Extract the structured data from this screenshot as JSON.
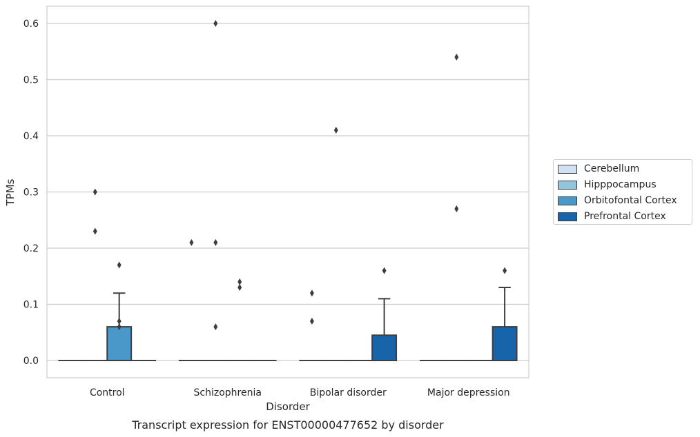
{
  "chart_data": {
    "type": "box",
    "title": "",
    "caption": "Transcript expression for ENST00000477652 by disorder",
    "xlabel": "Disorder",
    "ylabel": "TPMs",
    "ylim": [
      -0.03,
      0.63
    ],
    "yticks": [
      "0.0",
      "0.1",
      "0.2",
      "0.3",
      "0.4",
      "0.5",
      "0.6"
    ],
    "ytick_values": [
      0.0,
      0.1,
      0.2,
      0.3,
      0.4,
      0.5,
      0.6
    ],
    "grid": true,
    "legend_position": "right",
    "categories": [
      "Control",
      "Schizophrenia",
      "Bipolar disorder",
      "Major depression"
    ],
    "series": [
      {
        "name": "Cerebellum",
        "color": "#cfe1f2",
        "boxes": [
          {
            "q1": 0,
            "median": 0,
            "q3": 0,
            "whisker_low": 0,
            "whisker_high": 0,
            "outliers": []
          },
          {
            "q1": 0,
            "median": 0,
            "q3": 0,
            "whisker_low": 0,
            "whisker_high": 0,
            "outliers": [
              0.21
            ]
          },
          {
            "q1": 0,
            "median": 0,
            "q3": 0,
            "whisker_low": 0,
            "whisker_high": 0,
            "outliers": [
              0.12,
              0.07
            ]
          },
          {
            "q1": 0,
            "median": 0,
            "q3": 0,
            "whisker_low": 0,
            "whisker_high": 0,
            "outliers": []
          }
        ]
      },
      {
        "name": "Hipppocampus",
        "color": "#93c4de",
        "boxes": [
          {
            "q1": 0,
            "median": 0,
            "q3": 0,
            "whisker_low": 0,
            "whisker_high": 0,
            "outliers": [
              0.3,
              0.23
            ]
          },
          {
            "q1": 0,
            "median": 0,
            "q3": 0,
            "whisker_low": 0,
            "whisker_high": 0,
            "outliers": [
              0.6,
              0.21,
              0.06
            ]
          },
          {
            "q1": 0,
            "median": 0,
            "q3": 0,
            "whisker_low": 0,
            "whisker_high": 0,
            "outliers": [
              0.41
            ]
          },
          {
            "q1": 0,
            "median": 0,
            "q3": 0,
            "whisker_low": 0,
            "whisker_high": 0,
            "outliers": [
              0.54,
              0.27
            ]
          }
        ]
      },
      {
        "name": "Orbitofontal Cortex",
        "color": "#4a98c9",
        "boxes": [
          {
            "q1": 0,
            "median": 0,
            "q3": 0.06,
            "whisker_low": 0,
            "whisker_high": 0.12,
            "outliers": [
              0.17,
              0.07,
              0.06
            ]
          },
          {
            "q1": 0,
            "median": 0,
            "q3": 0,
            "whisker_low": 0,
            "whisker_high": 0,
            "outliers": [
              0.14,
              0.13
            ]
          },
          {
            "q1": 0,
            "median": 0,
            "q3": 0,
            "whisker_low": 0,
            "whisker_high": 0,
            "outliers": []
          },
          {
            "q1": 0,
            "median": 0,
            "q3": 0,
            "whisker_low": 0,
            "whisker_high": 0,
            "outliers": []
          }
        ]
      },
      {
        "name": "Prefrontal Cortex",
        "color": "#1764ab",
        "boxes": [
          {
            "q1": 0,
            "median": 0,
            "q3": 0,
            "whisker_low": 0,
            "whisker_high": 0,
            "outliers": []
          },
          {
            "q1": 0,
            "median": 0,
            "q3": 0,
            "whisker_low": 0,
            "whisker_high": 0,
            "outliers": []
          },
          {
            "q1": 0,
            "median": 0,
            "q3": 0.045,
            "whisker_low": 0,
            "whisker_high": 0.11,
            "outliers": [
              0.16
            ]
          },
          {
            "q1": 0,
            "median": 0,
            "q3": 0.06,
            "whisker_low": 0,
            "whisker_high": 0.13,
            "outliers": [
              0.16
            ]
          }
        ]
      }
    ]
  }
}
